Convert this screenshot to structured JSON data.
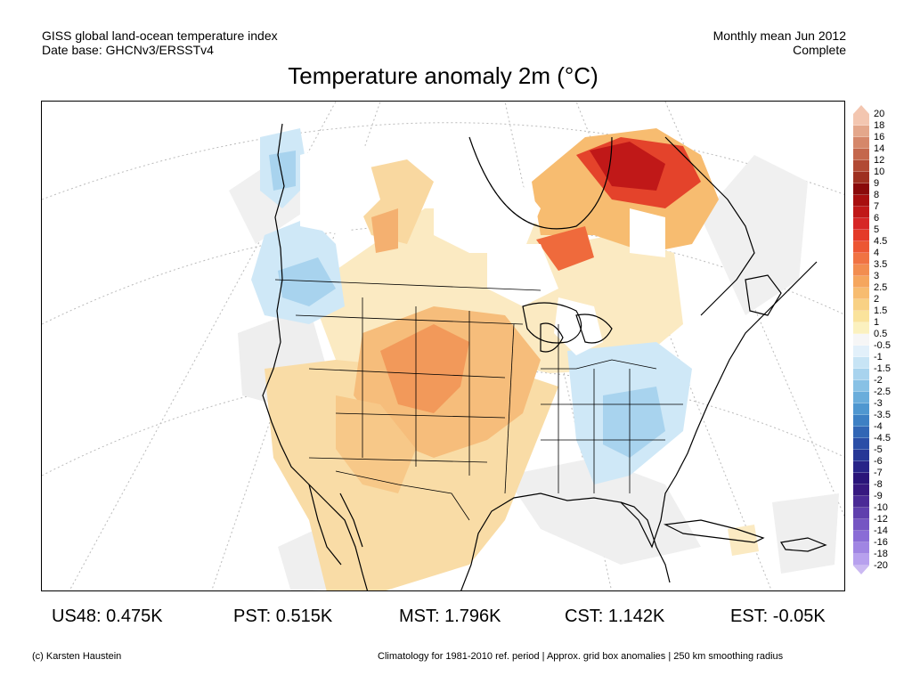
{
  "header": {
    "left_line1": "GISS global land-ocean temperature index",
    "left_line2": "Date base: GHCNv3/ERSSTv4",
    "right_line1": "Monthly mean Jun 2012",
    "right_line2": "Complete"
  },
  "title": "Temperature anomaly 2m (°C)",
  "colorbar": {
    "labels": [
      "20",
      "18",
      "16",
      "14",
      "12",
      "10",
      "9",
      "8",
      "7",
      "6",
      "5",
      "4.5",
      "4",
      "3.5",
      "3",
      "2.5",
      "2",
      "1.5",
      "1",
      "0.5",
      "-0.5",
      "-1",
      "-1.5",
      "-2",
      "-2.5",
      "-3",
      "-3.5",
      "-4",
      "-4.5",
      "-5",
      "-6",
      "-7",
      "-8",
      "-9",
      "-10",
      "-12",
      "-14",
      "-16",
      "-18",
      "-20"
    ],
    "colors": [
      "#f3c6b0",
      "#e4a78b",
      "#d5876a",
      "#c4674c",
      "#b14a34",
      "#9e3020",
      "#8a0a0a",
      "#a80f0f",
      "#c01818",
      "#d62626",
      "#e43a28",
      "#ec5634",
      "#f07343",
      "#f28d50",
      "#f5a65e",
      "#f7bc70",
      "#f8d184",
      "#fae39c",
      "#fbf1bf",
      "#f6f6f6",
      "#e2f0fa",
      "#c7e4f5",
      "#a8d3ee",
      "#88c1e5",
      "#6aaddb",
      "#4f97d0",
      "#3d80c4",
      "#3166b5",
      "#2a4ea7",
      "#263796",
      "#272488",
      "#2a157a",
      "#371980",
      "#4a2a96",
      "#5f3fad",
      "#7555c3",
      "#8a6cd6",
      "#a085e3",
      "#b7a0ee"
    ],
    "top_color": "#f3c6b0",
    "bottom_color": "#cbb9f2"
  },
  "stats": {
    "us48": "US48: 0.475K",
    "pst": "PST: 0.515K",
    "mst": "MST: 1.796K",
    "cst": "CST: 1.142K",
    "est": "EST: -0.05K"
  },
  "footer": {
    "left": "(c) Karsten Haustein",
    "right": "Climatology for 1981-2010 ref. period | Approx. grid box anomalies | 250 km smoothing radius"
  }
}
